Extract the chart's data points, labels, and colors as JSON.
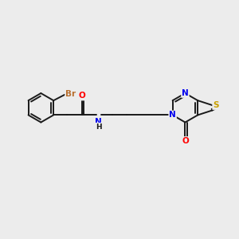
{
  "bg_color": "#ececec",
  "bond_color": "#1a1a1a",
  "bond_width": 1.4,
  "atom_colors": {
    "Br": "#b87030",
    "O": "#ff0000",
    "N": "#0000ee",
    "S": "#c8a000",
    "C": "#1a1a1a",
    "H": "#1a1a1a"
  },
  "font_size": 7.0
}
